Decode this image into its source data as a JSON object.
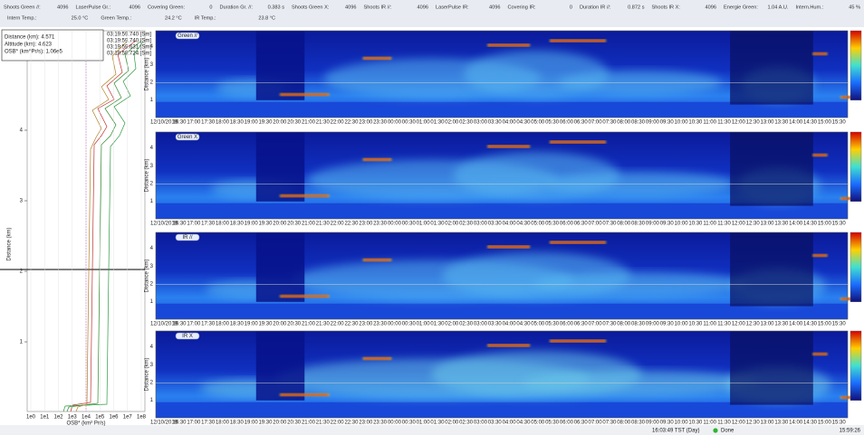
{
  "status_bar": {
    "row1": [
      {
        "label": "Shoots Green //:",
        "value": "4096"
      },
      {
        "label": "LaserPulse Gr.:",
        "value": "4096"
      },
      {
        "label": "Covering Green:",
        "value": "0"
      },
      {
        "label": "Duration Gr. //:",
        "value": "0.383 s"
      },
      {
        "label": "Shoots Green X:",
        "value": "4096"
      },
      {
        "label": "Shoots IR //:",
        "value": "4096"
      },
      {
        "label": "LaserPulse IR:",
        "value": "4096"
      },
      {
        "label": "Covering IR:",
        "value": "0"
      },
      {
        "label": "Duration IR //:",
        "value": "0.872 s"
      },
      {
        "label": "Shoots IR X:",
        "value": "4096"
      },
      {
        "label": "Energie Green:",
        "value": "1.04 A.U."
      },
      {
        "label": "Intern.Hum.:",
        "value": "45 %"
      }
    ],
    "row2": [
      {
        "label": "Intern Temp.:",
        "value": "25.0 °C"
      },
      {
        "label": "Green Temp.:",
        "value": "24.2 °C"
      },
      {
        "label": "IR Temp.:",
        "value": "23.8 °C"
      }
    ]
  },
  "profile": {
    "info": [
      "Distance (km): 4.571",
      "Altitude (km): 4.623",
      "OSB* (km^Pr/s): 1.06e5"
    ],
    "timestamps": [
      "03:19:59.740 [Sm]",
      "03:19:59.740 [Sm]",
      "03:19:59.631 [Sm]",
      "03:19:59.724 [Sm]"
    ],
    "y_label": "Distance (km)",
    "y_ticks": [
      "1",
      "2",
      "3",
      "4"
    ],
    "x_ticks": [
      "1e0",
      "1e1",
      "1e2",
      "1e3",
      "1e4",
      "1e5",
      "1e6",
      "1e7",
      "1e8"
    ],
    "x_label": "OSB* (km² Pr/s)"
  },
  "panels": [
    {
      "title": "Green //"
    },
    {
      "title": "Green X"
    },
    {
      "title": "IR //"
    },
    {
      "title": "IR X"
    }
  ],
  "panel_y_label": "Distance (km)",
  "panel_y_ticks": [
    "1",
    "2",
    "3",
    "4"
  ],
  "time_axis": {
    "date": "12/10/2019",
    "times": [
      "16:30",
      "17:00",
      "17:30",
      "18:00",
      "18:30",
      "19:00",
      "19:30",
      "20:00",
      "20:30",
      "21:00",
      "21:30",
      "22:00",
      "22:30",
      "23:00",
      "23:30",
      "00:00",
      "00:30",
      "01:00",
      "01:30",
      "02:00",
      "02:30",
      "03:00",
      "03:30",
      "04:00",
      "04:30",
      "05:00",
      "05:30",
      "06:00",
      "06:30",
      "07:00",
      "07:30",
      "08:00",
      "08:30",
      "09:00",
      "09:30",
      "10:00",
      "10:30",
      "11:00",
      "11:30",
      "12:00",
      "12:30",
      "13:00",
      "13:30",
      "14:00",
      "14:30",
      "15:00",
      "15:30"
    ]
  },
  "footer": {
    "time": "16:03:49 TST (Day)",
    "status": "Done",
    "clock": "15:59:26"
  }
}
